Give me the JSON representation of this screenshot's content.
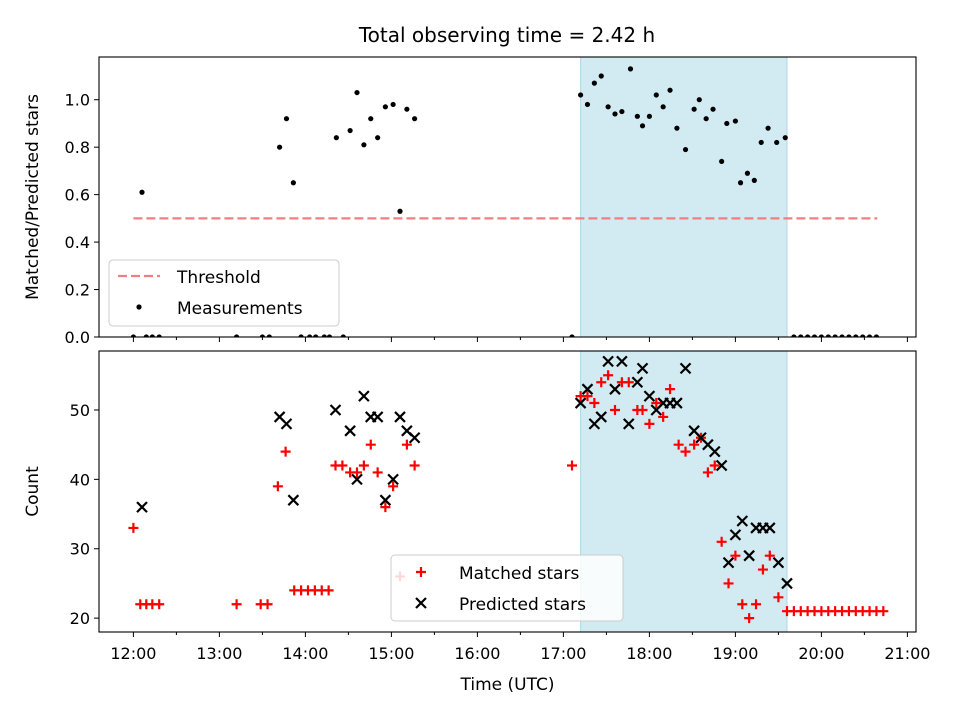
{
  "title": "Total observing time = 2.42 h",
  "shade_color": "#add8e6",
  "colors": {
    "threshold": "#f08080",
    "measurement": "#000000",
    "matched": "#ff0000",
    "predicted": "#000000"
  },
  "chart_data": [
    {
      "type": "scatter",
      "ylabel": "Matched/Predicted stars",
      "xlim": [
        11.6,
        21.1
      ],
      "ylim": [
        0,
        1.18
      ],
      "yticks": [
        0.0,
        0.2,
        0.4,
        0.6,
        0.8,
        1.0
      ],
      "ytick_labels": [
        "0.0",
        "0.2",
        "0.4",
        "0.6",
        "0.8",
        "1.0"
      ],
      "shaded_span": [
        17.2,
        19.6
      ],
      "legend_placement": "lower-left",
      "series": [
        {
          "name": "Threshold",
          "kind": "dashed-line",
          "x": [
            12.0,
            20.65
          ],
          "y": [
            0.5,
            0.5
          ]
        },
        {
          "name": "Measurements",
          "kind": "dots",
          "points": [
            [
              12.0,
              0.0
            ],
            [
              12.1,
              0.61
            ],
            [
              12.15,
              0.0
            ],
            [
              12.22,
              0.0
            ],
            [
              12.3,
              0.0
            ],
            [
              13.2,
              0.0
            ],
            [
              13.5,
              0.0
            ],
            [
              13.58,
              0.0
            ],
            [
              13.7,
              0.8
            ],
            [
              13.78,
              0.92
            ],
            [
              13.86,
              0.65
            ],
            [
              13.95,
              0.0
            ],
            [
              14.05,
              0.0
            ],
            [
              14.12,
              0.0
            ],
            [
              14.22,
              0.0
            ],
            [
              14.28,
              0.0
            ],
            [
              14.36,
              0.84
            ],
            [
              14.44,
              0.0
            ],
            [
              14.52,
              0.87
            ],
            [
              14.6,
              1.03
            ],
            [
              14.68,
              0.81
            ],
            [
              14.76,
              0.92
            ],
            [
              14.84,
              0.84
            ],
            [
              14.93,
              0.97
            ],
            [
              15.02,
              0.98
            ],
            [
              15.1,
              0.53
            ],
            [
              15.18,
              0.96
            ],
            [
              15.27,
              0.92
            ],
            [
              17.1,
              0.0
            ],
            [
              17.2,
              1.02
            ],
            [
              17.28,
              0.98
            ],
            [
              17.36,
              1.07
            ],
            [
              17.44,
              1.1
            ],
            [
              17.52,
              0.97
            ],
            [
              17.6,
              0.94
            ],
            [
              17.68,
              0.95
            ],
            [
              17.78,
              1.13
            ],
            [
              17.86,
              0.93
            ],
            [
              17.92,
              0.89
            ],
            [
              18.0,
              0.93
            ],
            [
              18.08,
              1.02
            ],
            [
              18.16,
              0.97
            ],
            [
              18.24,
              1.04
            ],
            [
              18.32,
              0.88
            ],
            [
              18.42,
              0.79
            ],
            [
              18.52,
              0.96
            ],
            [
              18.58,
              1.0
            ],
            [
              18.66,
              0.92
            ],
            [
              18.74,
              0.96
            ],
            [
              18.84,
              0.74
            ],
            [
              18.9,
              0.9
            ],
            [
              19.0,
              0.91
            ],
            [
              19.06,
              0.65
            ],
            [
              19.14,
              0.69
            ],
            [
              19.22,
              0.66
            ],
            [
              19.3,
              0.82
            ],
            [
              19.38,
              0.88
            ],
            [
              19.48,
              0.82
            ],
            [
              19.58,
              0.84
            ],
            [
              19.68,
              0.0
            ],
            [
              19.76,
              0.0
            ],
            [
              19.84,
              0.0
            ],
            [
              19.92,
              0.0
            ],
            [
              20.0,
              0.0
            ],
            [
              20.08,
              0.0
            ],
            [
              20.16,
              0.0
            ],
            [
              20.24,
              0.0
            ],
            [
              20.32,
              0.0
            ],
            [
              20.4,
              0.0
            ],
            [
              20.48,
              0.0
            ],
            [
              20.56,
              0.0
            ],
            [
              20.64,
              0.0
            ]
          ]
        }
      ]
    },
    {
      "type": "scatter",
      "ylabel": "Count",
      "xlabel": "Time (UTC)",
      "xlim": [
        11.6,
        21.1
      ],
      "ylim": [
        18,
        58.5
      ],
      "yticks": [
        20,
        30,
        40,
        50
      ],
      "ytick_labels": [
        "20",
        "30",
        "40",
        "50"
      ],
      "xticks": [
        12,
        13,
        14,
        15,
        16,
        17,
        18,
        19,
        20,
        21
      ],
      "xtick_labels": [
        "12:00",
        "13:00",
        "14:00",
        "15:00",
        "16:00",
        "17:00",
        "18:00",
        "19:00",
        "20:00",
        "21:00"
      ],
      "shaded_span": [
        17.2,
        19.6
      ],
      "legend_placement": "lower-center",
      "series": [
        {
          "name": "Matched stars",
          "kind": "plus",
          "points": [
            [
              12.0,
              33
            ],
            [
              12.08,
              22
            ],
            [
              12.15,
              22
            ],
            [
              12.22,
              22
            ],
            [
              12.3,
              22
            ],
            [
              13.2,
              22
            ],
            [
              13.48,
              22
            ],
            [
              13.56,
              22
            ],
            [
              13.68,
              39
            ],
            [
              13.77,
              44
            ],
            [
              13.87,
              24
            ],
            [
              13.95,
              24
            ],
            [
              14.03,
              24
            ],
            [
              14.11,
              24
            ],
            [
              14.19,
              24
            ],
            [
              14.27,
              24
            ],
            [
              14.35,
              42
            ],
            [
              14.43,
              42
            ],
            [
              14.52,
              41
            ],
            [
              14.6,
              41
            ],
            [
              14.68,
              42
            ],
            [
              14.76,
              45
            ],
            [
              14.84,
              41
            ],
            [
              14.93,
              36
            ],
            [
              15.02,
              39
            ],
            [
              15.1,
              26
            ],
            [
              15.18,
              45
            ],
            [
              15.27,
              42
            ],
            [
              17.1,
              42
            ],
            [
              17.2,
              52
            ],
            [
              17.28,
              52
            ],
            [
              17.36,
              51
            ],
            [
              17.44,
              54
            ],
            [
              17.52,
              55
            ],
            [
              17.6,
              50
            ],
            [
              17.68,
              54
            ],
            [
              17.76,
              54
            ],
            [
              17.86,
              50
            ],
            [
              17.92,
              50
            ],
            [
              18.0,
              48
            ],
            [
              18.08,
              51
            ],
            [
              18.16,
              49
            ],
            [
              18.24,
              53
            ],
            [
              18.34,
              45
            ],
            [
              18.42,
              44
            ],
            [
              18.52,
              45
            ],
            [
              18.6,
              46
            ],
            [
              18.68,
              41
            ],
            [
              18.76,
              42
            ],
            [
              18.84,
              31
            ],
            [
              18.92,
              25
            ],
            [
              19.0,
              29
            ],
            [
              19.08,
              22
            ],
            [
              19.16,
              20
            ],
            [
              19.24,
              22
            ],
            [
              19.32,
              27
            ],
            [
              19.4,
              29
            ],
            [
              19.5,
              23
            ],
            [
              19.6,
              21
            ],
            [
              19.68,
              21
            ],
            [
              19.76,
              21
            ],
            [
              19.84,
              21
            ],
            [
              19.92,
              21
            ],
            [
              20.0,
              21
            ],
            [
              20.08,
              21
            ],
            [
              20.16,
              21
            ],
            [
              20.24,
              21
            ],
            [
              20.32,
              21
            ],
            [
              20.4,
              21
            ],
            [
              20.48,
              21
            ],
            [
              20.56,
              21
            ],
            [
              20.64,
              21
            ],
            [
              20.72,
              21
            ]
          ]
        },
        {
          "name": "Predicted stars",
          "kind": "cross",
          "points": [
            [
              12.1,
              36
            ],
            [
              13.7,
              49
            ],
            [
              13.78,
              48
            ],
            [
              13.86,
              37
            ],
            [
              14.35,
              50
            ],
            [
              14.52,
              47
            ],
            [
              14.6,
              40
            ],
            [
              14.68,
              52
            ],
            [
              14.76,
              49
            ],
            [
              14.84,
              49
            ],
            [
              14.93,
              37
            ],
            [
              15.02,
              40
            ],
            [
              15.1,
              49
            ],
            [
              15.18,
              47
            ],
            [
              15.27,
              46
            ],
            [
              17.2,
              51
            ],
            [
              17.28,
              53
            ],
            [
              17.36,
              48
            ],
            [
              17.44,
              49
            ],
            [
              17.52,
              57
            ],
            [
              17.6,
              53
            ],
            [
              17.68,
              57
            ],
            [
              17.76,
              48
            ],
            [
              17.86,
              54
            ],
            [
              17.92,
              56
            ],
            [
              18.0,
              52
            ],
            [
              18.08,
              50
            ],
            [
              18.16,
              51
            ],
            [
              18.24,
              51
            ],
            [
              18.32,
              51
            ],
            [
              18.42,
              56
            ],
            [
              18.52,
              47
            ],
            [
              18.6,
              46
            ],
            [
              18.68,
              45
            ],
            [
              18.76,
              44
            ],
            [
              18.84,
              42
            ],
            [
              18.92,
              28
            ],
            [
              19.0,
              32
            ],
            [
              19.08,
              34
            ],
            [
              19.16,
              29
            ],
            [
              19.24,
              33
            ],
            [
              19.32,
              33
            ],
            [
              19.4,
              33
            ],
            [
              19.5,
              28
            ],
            [
              19.6,
              25
            ]
          ]
        }
      ]
    }
  ]
}
